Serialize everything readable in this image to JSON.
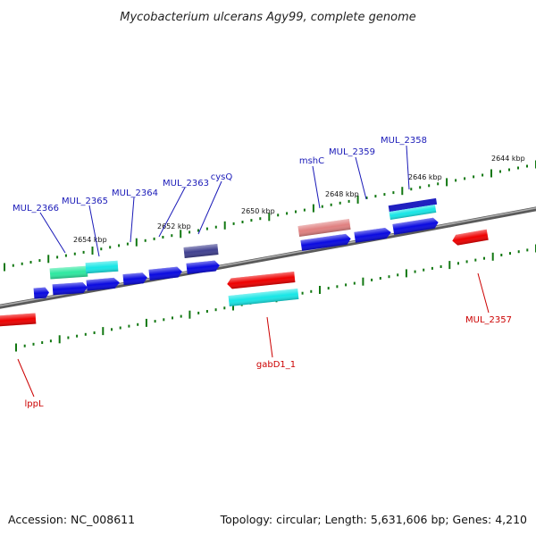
{
  "header": {
    "title": "Mycobacterium ulcerans Agy99, complete genome"
  },
  "footer": {
    "accession": "Accession: NC_008611",
    "topology": "Topology: circular; Length: 5,631,606 bp; Genes: 4,210"
  },
  "scale": {
    "tick_labels": [
      "2644 kbp",
      "2646 kbp",
      "2648 kbp",
      "2650 kbp",
      "2652 kbp",
      "2654 kbp"
    ]
  },
  "colors": {
    "forward_label": "#1a1ab8",
    "reverse_label": "#cc0000",
    "blue_cds": "#0a0ae0",
    "red_cds": "#ee0000",
    "cyan_feature": "#18e6e6",
    "green_feature": "#2ee8a0",
    "navy_feature": "#404090",
    "pink_feature": "#e08080",
    "backbone": "#808080",
    "tick": "#117711"
  },
  "genes": {
    "forward": [
      "MUL_2366",
      "MUL_2365",
      "MUL_2364",
      "MUL_2363",
      "cysQ",
      "mshC",
      "MUL_2359",
      "MUL_2358"
    ],
    "reverse": [
      "lppL",
      "gabD1_1",
      "MUL_2357"
    ]
  }
}
